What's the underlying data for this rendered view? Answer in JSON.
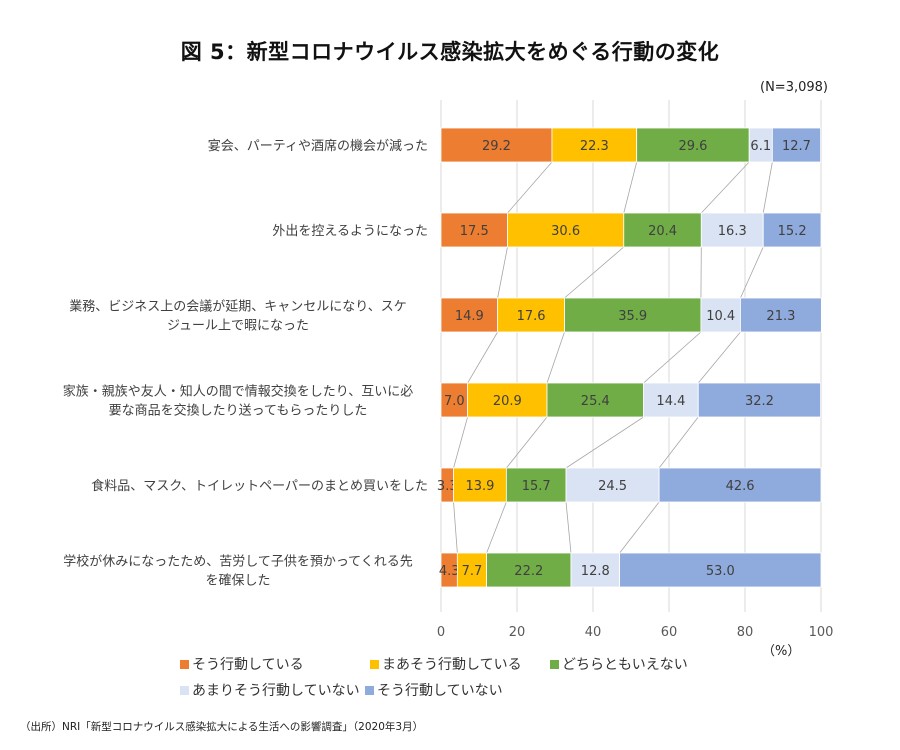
{
  "title": "図 5：新型コロナウイルス感染拡大をめぐる行動の変化",
  "sample_note": "(N=3,098)",
  "unit_label": "（%）",
  "source": "（出所）NRI「新型コロナウイルス感染拡大による生活への影響調査」（2020年3月）",
  "chart_data": {
    "type": "bar",
    "orientation": "horizontal",
    "stacked": "percent",
    "title": "図 5：新型コロナウイルス感染拡大をめぐる行動の変化",
    "xlabel": "（%）",
    "ylabel": "",
    "xlim": [
      0,
      100
    ],
    "xticks": [
      0,
      20,
      40,
      60,
      80,
      100
    ],
    "grid": true,
    "series_lines": true,
    "legend_position": "bottom",
    "categories": [
      [
        "宴会、パーティや酒席の機会が減った"
      ],
      [
        "外出を控えるようになった"
      ],
      [
        "業務、ビジネス上の会議が延期、キャンセルになり、スケ",
        "ジュール上で暇になった"
      ],
      [
        "家族・親族や友人・知人の間で情報交換をしたり、互いに必",
        "要な商品を交換したり送ってもらったりした"
      ],
      [
        "食料品、マスク、トイレットペーパーのまとめ買いをした"
      ],
      [
        "学校が休みになったため、苦労して子供を預かってくれる先",
        "を確保した"
      ]
    ],
    "series": [
      {
        "name": "そう行動している",
        "color": "#ED7D31",
        "values": [
          29.2,
          17.5,
          14.9,
          7.0,
          3.3,
          4.3
        ]
      },
      {
        "name": "まあそう行動している",
        "color": "#FFC000",
        "values": [
          22.3,
          30.6,
          17.6,
          20.9,
          13.9,
          7.7
        ]
      },
      {
        "name": "どちらともいえない",
        "color": "#70AD47",
        "values": [
          29.6,
          20.4,
          35.9,
          25.4,
          15.7,
          22.2
        ]
      },
      {
        "name": "あまりそう行動していない",
        "color": "#DAE3F3",
        "values": [
          6.1,
          16.3,
          10.4,
          14.4,
          24.5,
          12.8
        ]
      },
      {
        "name": "そう行動していない",
        "color": "#8FAADC",
        "values": [
          12.7,
          15.2,
          21.3,
          32.2,
          42.6,
          53.0
        ]
      }
    ]
  }
}
